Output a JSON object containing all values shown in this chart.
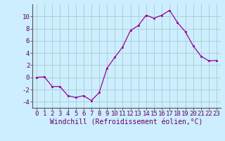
{
  "x": [
    0,
    1,
    2,
    3,
    4,
    5,
    6,
    7,
    8,
    9,
    10,
    11,
    12,
    13,
    14,
    15,
    16,
    17,
    18,
    19,
    20,
    21,
    22,
    23
  ],
  "y": [
    0.0,
    0.1,
    -1.5,
    -1.5,
    -3.0,
    -3.3,
    -3.0,
    -3.8,
    -2.5,
    1.5,
    3.3,
    5.0,
    7.7,
    8.5,
    10.2,
    9.7,
    10.2,
    11.0,
    9.0,
    7.5,
    5.2,
    3.5,
    2.7,
    2.8
  ],
  "xlabel": "Windchill (Refroidissement éolien,°C)",
  "ylim": [
    -5,
    12
  ],
  "xlim": [
    -0.5,
    23.5
  ],
  "yticks": [
    -4,
    -2,
    0,
    2,
    4,
    6,
    8,
    10
  ],
  "xticks": [
    0,
    1,
    2,
    3,
    4,
    5,
    6,
    7,
    8,
    9,
    10,
    11,
    12,
    13,
    14,
    15,
    16,
    17,
    18,
    19,
    20,
    21,
    22,
    23
  ],
  "line_color": "#990099",
  "marker_color": "#990099",
  "bg_color": "#cceeff",
  "grid_color": "#aacccc",
  "spine_color": "#555555",
  "xlabel_fontsize": 7.0,
  "tick_fontsize": 6.5,
  "text_color": "#660066"
}
